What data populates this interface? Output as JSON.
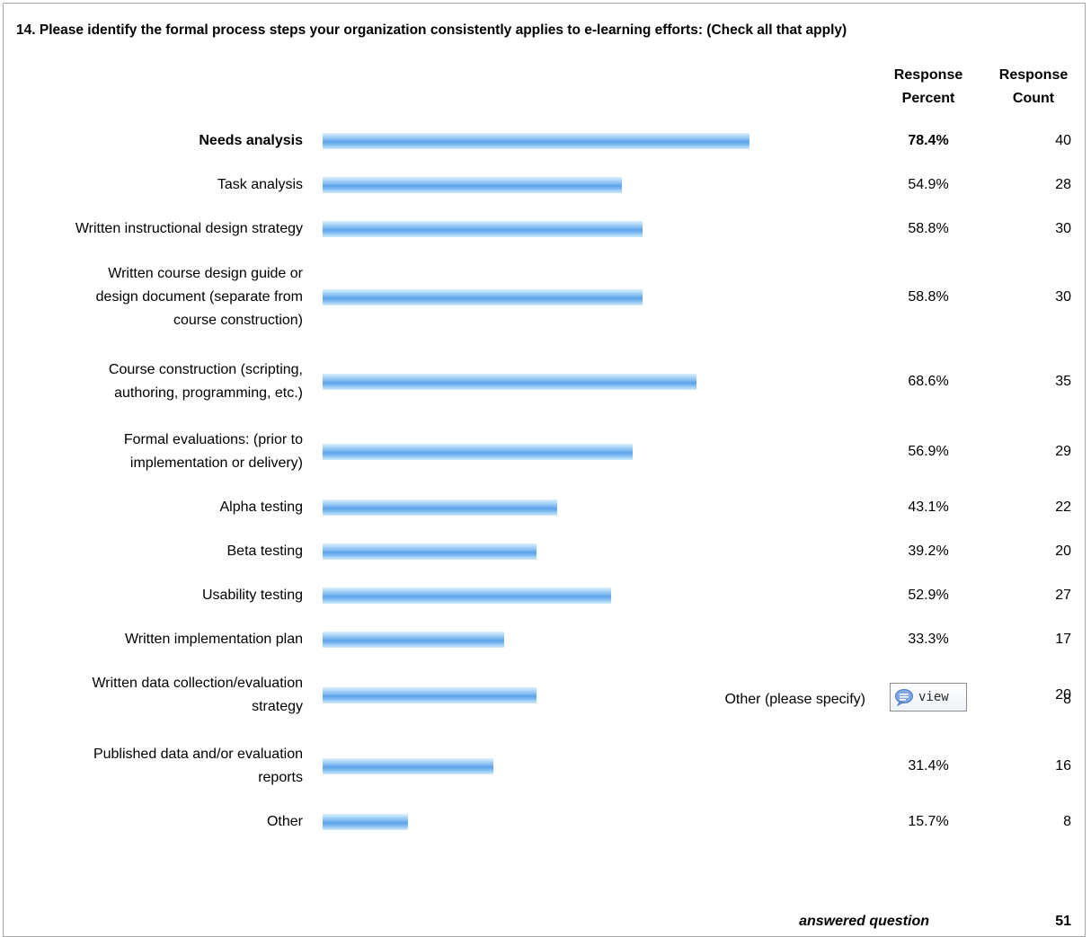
{
  "question": "14. Please identify the formal process steps your organization consistently applies to e-learning efforts: (Check all that apply)",
  "headers": {
    "percent": [
      "Response",
      "Percent"
    ],
    "count": [
      "Response",
      "Count"
    ]
  },
  "chart_data": {
    "type": "bar",
    "orientation": "horizontal",
    "categories": [
      "Needs analysis",
      "Task analysis",
      "Written instructional design strategy",
      "Written course design guide or design document (separate from course construction)",
      "Course construction (scripting, authoring, programming, etc.)",
      "Formal evaluations: (prior to implementation or delivery)",
      "Alpha testing",
      "Beta testing",
      "Usability testing",
      "Written implementation plan",
      "Written data collection/evaluation strategy",
      "Published data and/or evaluation reports",
      "Other"
    ],
    "values": [
      78.4,
      54.9,
      58.8,
      58.8,
      68.6,
      56.9,
      43.1,
      39.2,
      52.9,
      33.3,
      39.2,
      31.4,
      15.7
    ],
    "xlim": [
      0,
      100
    ],
    "bar_color": "#78b4ef"
  },
  "rows": [
    {
      "label_lines": [
        "Needs analysis"
      ],
      "percent": "78.4%",
      "count": "40",
      "bold": true
    },
    {
      "label_lines": [
        "Task analysis"
      ],
      "percent": "54.9%",
      "count": "28",
      "bold": false
    },
    {
      "label_lines": [
        "Written instructional design strategy"
      ],
      "percent": "58.8%",
      "count": "30",
      "bold": false
    },
    {
      "label_lines": [
        "Written course design guide or",
        "design document (separate from",
        "course construction)"
      ],
      "percent": "58.8%",
      "count": "30",
      "bold": false
    },
    {
      "label_lines": [
        "Course construction (scripting,",
        "authoring, programming, etc.)"
      ],
      "percent": "68.6%",
      "count": "35",
      "bold": false
    },
    {
      "label_lines": [
        "Formal evaluations: (prior to",
        "implementation or delivery)"
      ],
      "percent": "56.9%",
      "count": "29",
      "bold": false
    },
    {
      "label_lines": [
        "Alpha testing"
      ],
      "percent": "43.1%",
      "count": "22",
      "bold": false
    },
    {
      "label_lines": [
        "Beta testing"
      ],
      "percent": "39.2%",
      "count": "20",
      "bold": false
    },
    {
      "label_lines": [
        "Usability testing"
      ],
      "percent": "52.9%",
      "count": "27",
      "bold": false
    },
    {
      "label_lines": [
        "Written implementation plan"
      ],
      "percent": "33.3%",
      "count": "17",
      "bold": false
    },
    {
      "label_lines": [
        "Written data collection/evaluation",
        "strategy"
      ],
      "percent": "39.2%",
      "count": "20",
      "bold": false
    },
    {
      "label_lines": [
        "Published data and/or evaluation",
        "reports"
      ],
      "percent": "31.4%",
      "count": "16",
      "bold": false
    },
    {
      "label_lines": [
        "Other"
      ],
      "percent": "15.7%",
      "count": "8",
      "bold": false
    }
  ],
  "other_specify": {
    "label": "Other (please specify)",
    "button_label": "view",
    "button_icon": "speech-bubble-icon",
    "count": "8"
  },
  "answered": {
    "label": "answered question",
    "count": "51"
  }
}
